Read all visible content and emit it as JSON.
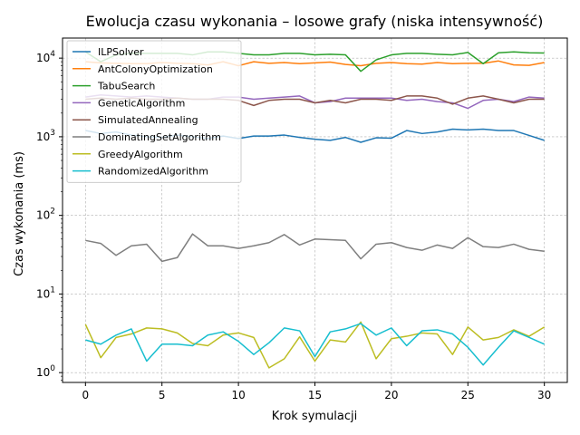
{
  "chart_data": {
    "type": "line",
    "title": "Ewolucja czasu wykonania – losowe grafy (niska intensywność)",
    "xlabel": "Krok symulacji",
    "ylabel": "Czas wykonania (ms)",
    "yscale": "log",
    "xlim": [
      -1.5,
      31.5
    ],
    "ylim": [
      0.75,
      18000
    ],
    "grid": true,
    "legend_position": "top-left",
    "x_ticks": [
      0,
      5,
      10,
      15,
      20,
      25,
      30
    ],
    "y_ticks": [
      1,
      10,
      100,
      1000,
      10000
    ],
    "y_tick_labels": [
      "10^0",
      "10^1",
      "10^2",
      "10^3",
      "10^4"
    ],
    "x": [
      0,
      1,
      2,
      3,
      4,
      5,
      6,
      7,
      8,
      9,
      10,
      11,
      12,
      13,
      14,
      15,
      16,
      17,
      18,
      19,
      20,
      21,
      22,
      23,
      24,
      25,
      26,
      27,
      28,
      29,
      30
    ],
    "series": [
      {
        "name": "ILPSolver",
        "color": "#1f77b4",
        "values": [
          1200,
          1100,
          1150,
          1050,
          1000,
          980,
          1050,
          1000,
          950,
          1020,
          950,
          1020,
          1020,
          1050,
          980,
          930,
          900,
          980,
          850,
          970,
          960,
          1200,
          1100,
          1150,
          1250,
          1220,
          1250,
          1200,
          1200,
          1040,
          900
        ]
      },
      {
        "name": "AntColonyOptimization",
        "color": "#ff7f0e",
        "values": [
          9000,
          8700,
          8600,
          8500,
          8500,
          8800,
          8600,
          8500,
          8200,
          9000,
          8000,
          9000,
          8600,
          8800,
          8500,
          8700,
          8900,
          8300,
          8000,
          8600,
          8800,
          8500,
          8400,
          8800,
          8500,
          8600,
          8600,
          9200,
          8200,
          8100,
          8800
        ]
      },
      {
        "name": "TabuSearch",
        "color": "#2ca02c",
        "values": [
          12000,
          9000,
          11000,
          11500,
          11500,
          11500,
          11500,
          11000,
          12000,
          12000,
          11500,
          11000,
          11000,
          11500,
          11500,
          11000,
          11200,
          11000,
          6800,
          9500,
          11000,
          11500,
          11500,
          11200,
          11000,
          11800,
          8500,
          11700,
          12000,
          11700,
          11600
        ]
      },
      {
        "name": "GeneticAlgorithm",
        "color": "#9467bd",
        "values": [
          3200,
          3400,
          3300,
          3200,
          3300,
          3200,
          3100,
          3000,
          3000,
          3200,
          3200,
          3000,
          3100,
          3200,
          3300,
          2700,
          2800,
          3100,
          3100,
          3100,
          3100,
          2900,
          3000,
          2800,
          2700,
          2300,
          2900,
          3000,
          2800,
          3200,
          3100
        ]
      },
      {
        "name": "SimulatedAnnealing",
        "color": "#8c564b",
        "values": [
          3000,
          3100,
          3000,
          3100,
          3000,
          3000,
          3100,
          3000,
          3000,
          3000,
          2900,
          2500,
          2900,
          3000,
          3000,
          2700,
          2900,
          2700,
          3000,
          3000,
          2900,
          3300,
          3300,
          3100,
          2600,
          3100,
          3300,
          3000,
          2700,
          3000,
          3000
        ]
      },
      {
        "name": "DominatingSetAlgorithm",
        "color": "#7f7f7f",
        "values": [
          48,
          44,
          31,
          41,
          43,
          26,
          29,
          58,
          41,
          41,
          38,
          41,
          45,
          57,
          42,
          50,
          49,
          48,
          28,
          43,
          45,
          39,
          36,
          42,
          38,
          52,
          40,
          39,
          43,
          37,
          35
        ]
      },
      {
        "name": "GreedyAlgorithm",
        "color": "#bcbd22",
        "values": [
          4.1,
          1.55,
          2.8,
          3.1,
          3.7,
          3.6,
          3.2,
          2.35,
          2.2,
          3.0,
          3.2,
          2.8,
          1.15,
          1.5,
          2.85,
          1.4,
          2.6,
          2.45,
          4.4,
          1.5,
          2.7,
          2.9,
          3.2,
          3.1,
          1.7,
          3.8,
          2.6,
          2.8,
          3.5,
          2.9,
          3.8
        ]
      },
      {
        "name": "RandomizedAlgorithm",
        "color": "#17becf",
        "values": [
          2.6,
          2.3,
          3.0,
          3.6,
          1.4,
          2.3,
          2.3,
          2.2,
          3.0,
          3.3,
          2.5,
          1.7,
          2.4,
          3.7,
          3.4,
          1.6,
          3.3,
          3.6,
          4.2,
          3.0,
          3.7,
          2.2,
          3.4,
          3.5,
          3.1,
          2.1,
          1.25,
          2.1,
          3.4,
          2.8,
          2.3
        ]
      }
    ]
  }
}
